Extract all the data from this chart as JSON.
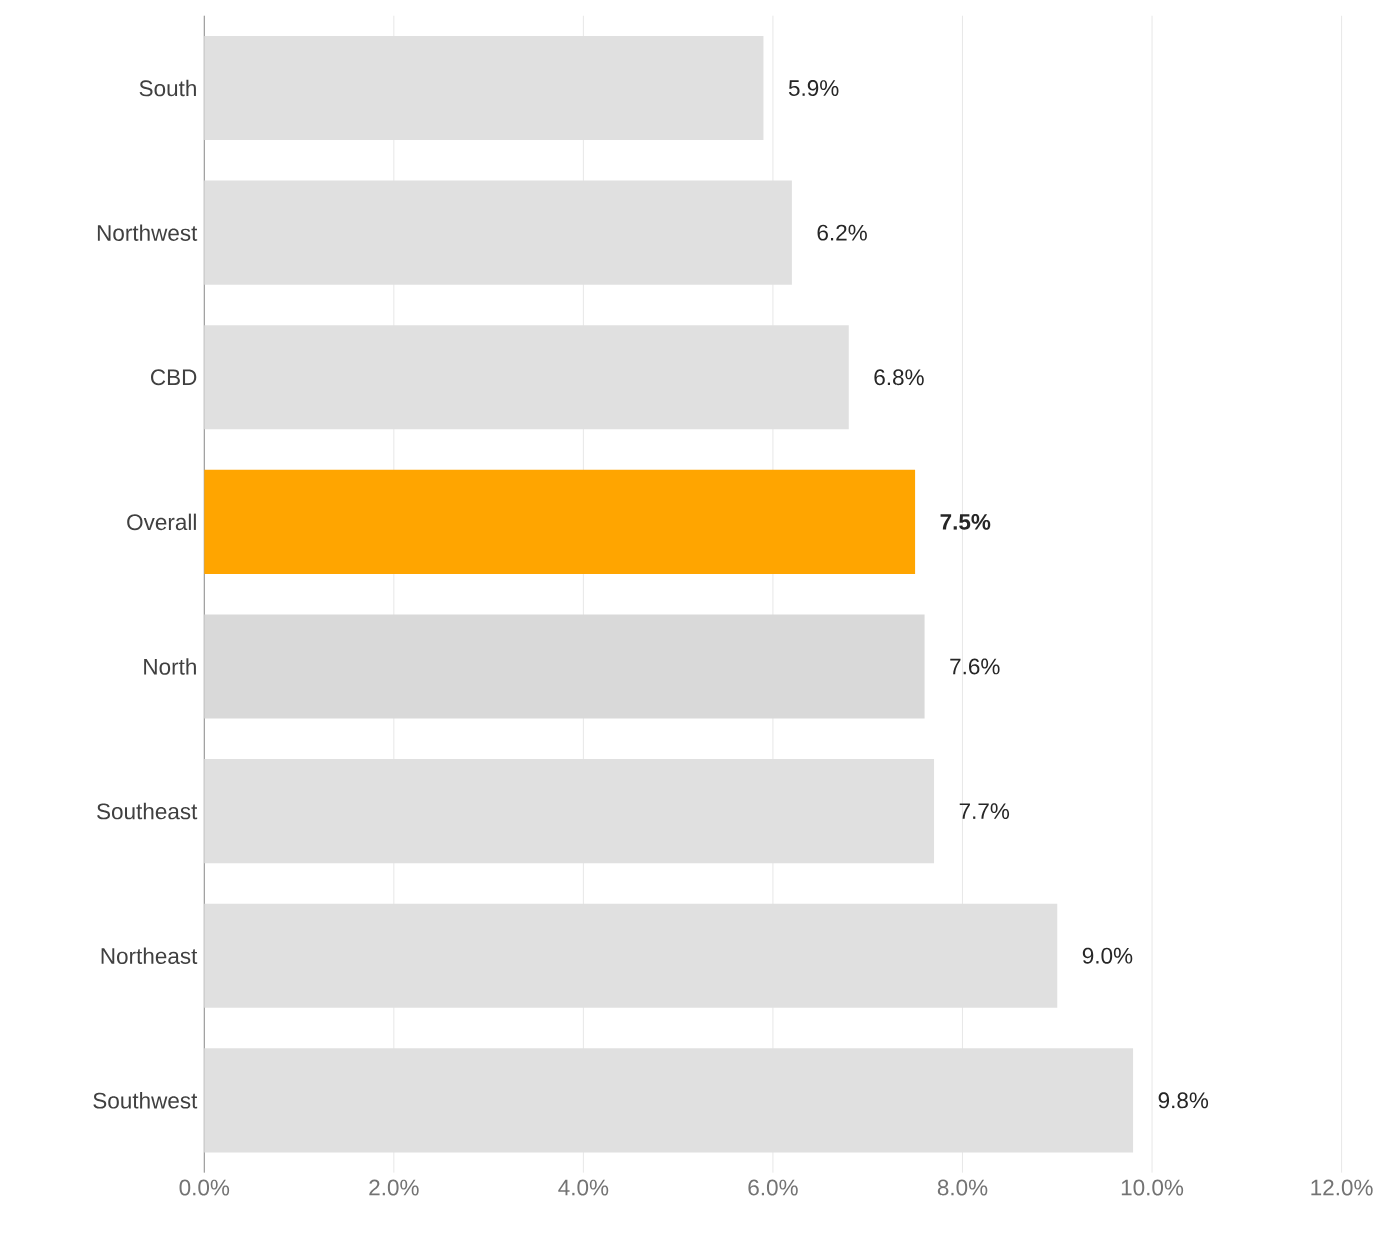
{
  "chart_data": {
    "type": "bar",
    "orientation": "horizontal",
    "categories": [
      "South",
      "Northwest",
      "CBD",
      "Overall",
      "North",
      "Southeast",
      "Northeast",
      "Southwest"
    ],
    "values": [
      5.9,
      6.2,
      6.8,
      7.5,
      7.6,
      7.7,
      9.0,
      9.8
    ],
    "colors": [
      "#e0e0e0",
      "#e0e0e0",
      "#e0e0e0",
      "#ffa500",
      "#d9d9d9",
      "#e0e0e0",
      "#e0e0e0",
      "#e0e0e0"
    ],
    "value_labels": [
      "5.9%",
      "6.2%",
      "6.8%",
      "**7.5%**",
      "7.6%",
      "7.7%",
      "9.0%",
      "9.8%"
    ],
    "xlim": [
      0,
      12
    ],
    "xticks": [
      {
        "value": 0,
        "label": "0.0%"
      },
      {
        "value": 2,
        "label": "2.0%"
      },
      {
        "value": 4,
        "label": "4.0%"
      },
      {
        "value": 6,
        "label": "6.0%"
      },
      {
        "value": 8,
        "label": "8.0%"
      },
      {
        "value": 10,
        "label": "10.0%"
      },
      {
        "value": 12,
        "label": "12.0%"
      }
    ],
    "grid": "x"
  }
}
